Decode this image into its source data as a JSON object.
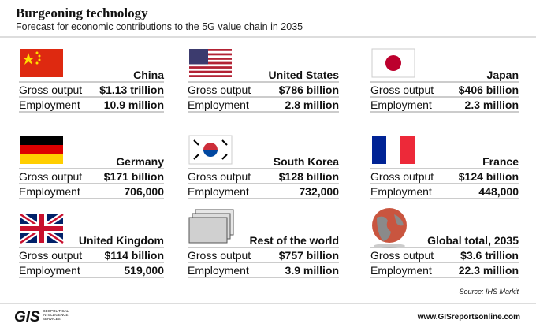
{
  "header": {
    "title": "Burgeoning technology",
    "subtitle": "Forecast for economic contributions to the 5G value chain in 2035"
  },
  "cards": [
    {
      "name": "China",
      "rows": [
        {
          "label": "Gross output",
          "value": "$1.13 trillion"
        },
        {
          "label": "Employment",
          "value": "10.9 million"
        }
      ]
    },
    {
      "name": "United States",
      "rows": [
        {
          "label": "Gross output",
          "value": "$786 billion"
        },
        {
          "label": "Employment",
          "value": "2.8 million"
        }
      ]
    },
    {
      "name": "Japan",
      "rows": [
        {
          "label": "Gross output",
          "value": "$406 billion"
        },
        {
          "label": "Employment",
          "value": "2.3 million"
        }
      ]
    },
    {
      "name": "Germany",
      "rows": [
        {
          "label": "Gross output",
          "value": "$171 billion"
        },
        {
          "label": "Employment",
          "value": "706,000"
        }
      ]
    },
    {
      "name": "South Korea",
      "rows": [
        {
          "label": "Gross output",
          "value": "$128 billion"
        },
        {
          "label": "Employment",
          "value": "732,000"
        }
      ]
    },
    {
      "name": "France",
      "rows": [
        {
          "label": "Gross output",
          "value": "$124 billion"
        },
        {
          "label": "Employment",
          "value": "448,000"
        }
      ]
    },
    {
      "name": "United Kingdom",
      "rows": [
        {
          "label": "Gross output",
          "value": "$114 billion"
        },
        {
          "label": "Employment",
          "value": "519,000"
        }
      ]
    },
    {
      "name": "Rest of the world",
      "rows": [
        {
          "label": "Gross output",
          "value": "$757 billion"
        },
        {
          "label": "Employment",
          "value": "3.9 million"
        }
      ]
    },
    {
      "name": "Global total, 2035",
      "rows": [
        {
          "label": "Gross output",
          "value": "$3.6 trillion"
        },
        {
          "label": "Employment",
          "value": "22.3 million"
        }
      ]
    }
  ],
  "source": "Source: IHS Markit",
  "footer": {
    "logo": "GIS",
    "tagline": [
      "GEOPOLITICAL",
      "INTELLIGENCE",
      "SERVICES"
    ],
    "url": "www.GISreportsonline.com"
  }
}
